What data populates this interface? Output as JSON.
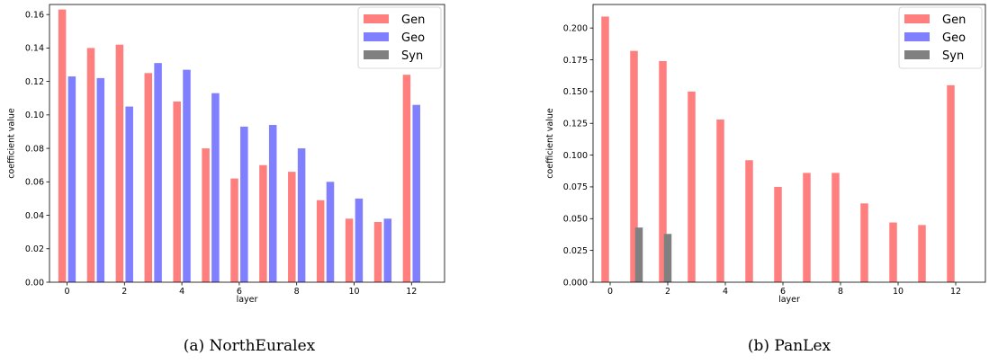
{
  "legend": [
    "Gen",
    "Geo",
    "Syn"
  ],
  "colors": {
    "Gen": "#ff7f7f",
    "Geo": "#7f7fff",
    "Syn": "#808080"
  },
  "chart_data": [
    {
      "type": "bar",
      "caption": "(a) NorthEuralex",
      "xlabel": "layer",
      "ylabel": "coefficient value",
      "x_ticks": [
        0,
        2,
        4,
        6,
        8,
        10,
        12
      ],
      "y_ticks": [
        "0.00",
        "0.02",
        "0.04",
        "0.06",
        "0.08",
        "0.10",
        "0.12",
        "0.14",
        "0.16"
      ],
      "ylim": [
        0,
        0.166
      ],
      "legend_position": "top-right",
      "bar_order": [
        "Gen",
        "Syn",
        "Geo"
      ],
      "categories": [
        0,
        1,
        2,
        3,
        4,
        5,
        6,
        7,
        8,
        9,
        10,
        11,
        12
      ],
      "series": [
        {
          "name": "Gen",
          "values": [
            0.163,
            0.14,
            0.142,
            0.125,
            0.108,
            0.08,
            0.062,
            0.07,
            0.066,
            0.049,
            0.038,
            0.036,
            0.124
          ]
        },
        {
          "name": "Geo",
          "values": [
            0.123,
            0.122,
            0.105,
            0.131,
            0.127,
            0.113,
            0.093,
            0.094,
            0.08,
            0.06,
            0.05,
            0.038,
            0.106
          ]
        },
        {
          "name": "Syn",
          "values": [
            0,
            0,
            0,
            0,
            0,
            0,
            0,
            0,
            0,
            0,
            0,
            0,
            0
          ]
        }
      ]
    },
    {
      "type": "bar",
      "caption": "(b) PanLex",
      "xlabel": "layer",
      "ylabel": "coefficient value",
      "x_ticks": [
        0,
        2,
        4,
        6,
        8,
        10,
        12
      ],
      "y_ticks": [
        "0.000",
        "0.025",
        "0.050",
        "0.075",
        "0.100",
        "0.125",
        "0.150",
        "0.175",
        "0.200"
      ],
      "ylim": [
        0,
        0.2185
      ],
      "legend_position": "top-right",
      "bar_order": [
        "Gen",
        "Syn",
        "Geo"
      ],
      "categories": [
        0,
        1,
        2,
        3,
        4,
        5,
        6,
        7,
        8,
        9,
        10,
        11,
        12
      ],
      "series": [
        {
          "name": "Gen",
          "values": [
            0.209,
            0.182,
            0.174,
            0.15,
            0.128,
            0.096,
            0.075,
            0.086,
            0.086,
            0.062,
            0.047,
            0.045,
            0.155
          ]
        },
        {
          "name": "Geo",
          "values": [
            0,
            0,
            0,
            0,
            0,
            0,
            0,
            0,
            0,
            0,
            0,
            0,
            0
          ]
        },
        {
          "name": "Syn",
          "values": [
            0,
            0.043,
            0.038,
            0,
            0,
            0,
            0,
            0,
            0,
            0,
            0,
            0,
            0
          ]
        }
      ]
    }
  ]
}
